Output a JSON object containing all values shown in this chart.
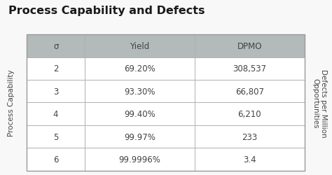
{
  "title": "Process Capability and Defects",
  "title_fontsize": 11.5,
  "title_fontweight": "bold",
  "left_label": "Process Capability",
  "right_label": "Defects per Million\nOpportunities",
  "headers": [
    "σ",
    "Yield",
    "DPMO"
  ],
  "rows": [
    [
      "2",
      "69.20%",
      "308,537"
    ],
    [
      "3",
      "93.30%",
      "66,807"
    ],
    [
      "4",
      "99.40%",
      "6,210"
    ],
    [
      "5",
      "99.97%",
      "233"
    ],
    [
      "6",
      "99.9996%",
      "3.4"
    ]
  ],
  "header_bg": "#b2baba",
  "row_bg": "#ffffff",
  "outer_bg": "#d4dada",
  "table_border_color": "#999999",
  "grid_color": "#b0b0b0",
  "header_fontsize": 8.5,
  "cell_fontsize": 8.5,
  "label_fontsize": 7.5,
  "bg_color": "#f8f8f8",
  "title_color": "#1a1a1a",
  "cell_color": "#444444",
  "label_color": "#444444"
}
